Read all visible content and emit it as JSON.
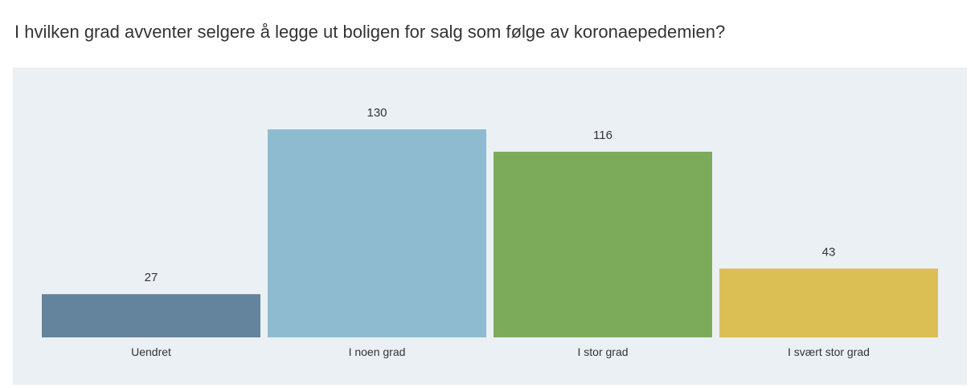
{
  "chart_data": {
    "type": "bar",
    "title": "I hvilken grad avventer selgere å legge ut boligen for salg som følge av koronaepedemien?",
    "categories": [
      "Uendret",
      "I noen grad",
      "I stor grad",
      "I svært stor grad"
    ],
    "values": [
      27,
      130,
      116,
      43
    ],
    "colors": [
      "#63849c",
      "#8fbbd0",
      "#7cab5a",
      "#dbbf55"
    ],
    "xlabel": "",
    "ylabel": "",
    "ylim": [
      0,
      130
    ],
    "grid": false,
    "legend": "none"
  }
}
